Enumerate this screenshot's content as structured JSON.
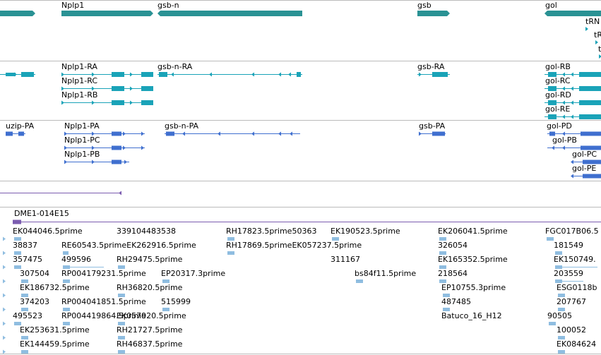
{
  "colors": {
    "gene": "#2a9294",
    "transcript": "#1aa3b8",
    "cds": "#3f6fcf",
    "clone": "#7b5cb0",
    "est": "#8fbde0",
    "separator": "#bbbbbb"
  },
  "genes": [
    {
      "label": "Nplp1"
    },
    {
      "label": "gsb-n"
    },
    {
      "label": "gsb"
    },
    {
      "label": "gol"
    },
    {
      "label": "tRN"
    },
    {
      "label": "tR"
    },
    {
      "label": "t"
    }
  ],
  "transcripts": [
    {
      "label": "Nplp1-RA"
    },
    {
      "label": "Nplp1-RC"
    },
    {
      "label": "Nplp1-RB"
    },
    {
      "label": "gsb-n-RA"
    },
    {
      "label": "gsb-RA"
    },
    {
      "label": "gol-RB"
    },
    {
      "label": "gol-RC"
    },
    {
      "label": "gol-RD"
    },
    {
      "label": "gol-RE"
    }
  ],
  "cds": [
    {
      "label": "uzip-PA"
    },
    {
      "label": "Nplp1-PA"
    },
    {
      "label": "Nplp1-PC"
    },
    {
      "label": "Nplp1-PB"
    },
    {
      "label": "gsb-n-PA"
    },
    {
      "label": "gsb-PA"
    },
    {
      "label": "gol-PD"
    },
    {
      "label": "gol-PB"
    },
    {
      "label": "gol-PC"
    },
    {
      "label": "gol-PE"
    }
  ],
  "clone": {
    "label": "DME1-014E15"
  },
  "ests": [
    {
      "label": "EK044046.5prime"
    },
    {
      "label": "339104483538"
    },
    {
      "label": "RH17823.5prime50363"
    },
    {
      "label": "EK190523.5prime"
    },
    {
      "label": "EK206041.5prime"
    },
    {
      "label": "FGC017B06.5"
    },
    {
      "label": "38837"
    },
    {
      "label": "RE60543.5primeEK262916.5prime"
    },
    {
      "label": "RH17869.5primeEK057237.5prime"
    },
    {
      "label": "326054"
    },
    {
      "label": "181549"
    },
    {
      "label": "357475"
    },
    {
      "label": "499596"
    },
    {
      "label": "RH29475.5prime"
    },
    {
      "label": "311167"
    },
    {
      "label": "EK165352.5prime"
    },
    {
      "label": "EK150749."
    },
    {
      "label": "307504"
    },
    {
      "label": "RP004179231.5prime"
    },
    {
      "label": "EP20317.3prime"
    },
    {
      "label": "bs84f11.5prime"
    },
    {
      "label": "218564"
    },
    {
      "label": "203559"
    },
    {
      "label": "EK186732.5prime"
    },
    {
      "label": "RH36820.5prime"
    },
    {
      "label": "EP10755.3prime"
    },
    {
      "label": "ESG0118b"
    },
    {
      "label": "374203"
    },
    {
      "label": "RP004041851.5prime"
    },
    {
      "label": "515999"
    },
    {
      "label": "487485"
    },
    {
      "label": "207767"
    },
    {
      "label": "495523"
    },
    {
      "label": "RP004419864.5prime"
    },
    {
      "label": "EK057920.5prime"
    },
    {
      "label": "Batuco_16_H12"
    },
    {
      "label": "90505"
    },
    {
      "label": "EK253631.5prime"
    },
    {
      "label": "RH21727.5prime"
    },
    {
      "label": "100052"
    },
    {
      "label": "EK144459.5prime"
    },
    {
      "label": "RH46837.5prime"
    },
    {
      "label": "EK084624"
    }
  ]
}
